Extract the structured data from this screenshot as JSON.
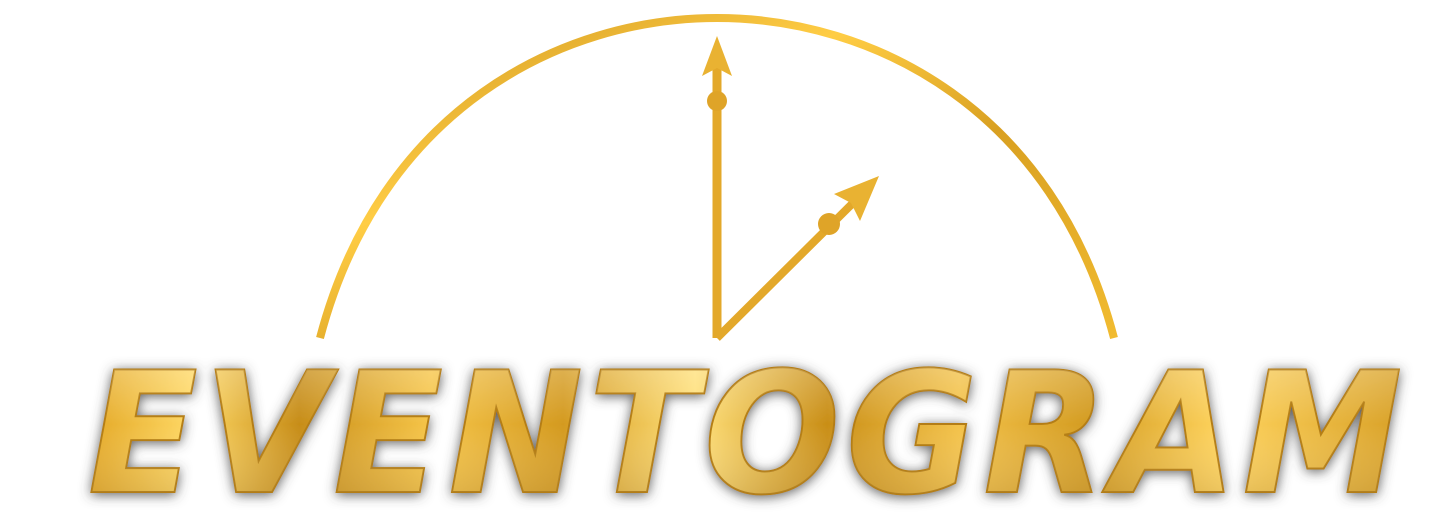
{
  "logo": {
    "wordmark": "EVENTOGRAM",
    "emblem": "half-clock-icon",
    "colors": {
      "gold_light": "#ffd659",
      "gold_mid": "#e8b028",
      "gold_dark": "#b07a10",
      "shadow": "#555555",
      "background": "#ffffff"
    }
  }
}
